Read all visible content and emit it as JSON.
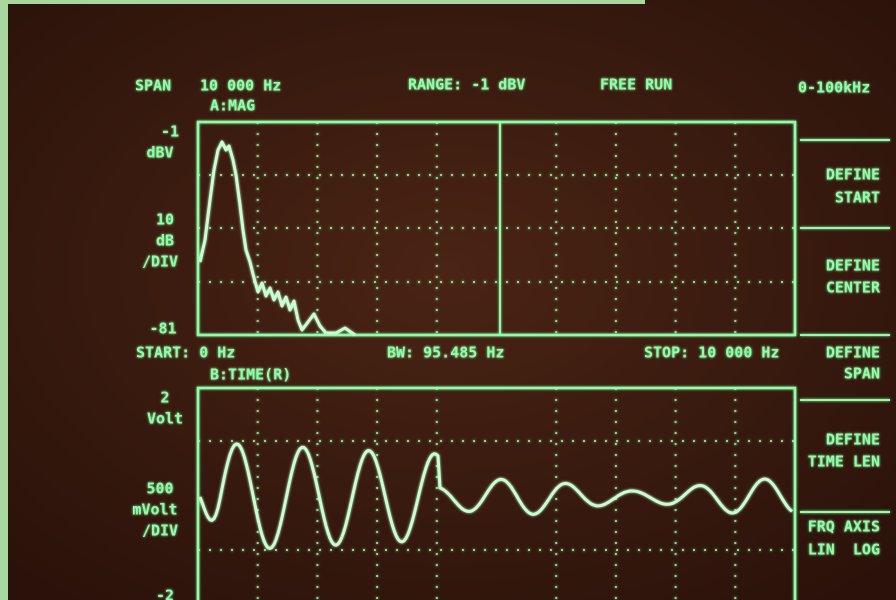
{
  "header": {
    "span_label": "SPAN",
    "span_value": "10 000 Hz",
    "range": "RANGE: -1 dBV",
    "trigger": "FREE RUN",
    "band": "0-100kHz"
  },
  "trace_a": {
    "title": "A:MAG",
    "top": "-1",
    "top_unit": "dBV",
    "scale": "10",
    "scale_unit": "dB",
    "scale_per": "/DIV",
    "bottom": "-81"
  },
  "status": {
    "start": "START: 0 Hz",
    "bw": "BW: 95.485 Hz",
    "stop": "STOP: 10 000 Hz"
  },
  "trace_b": {
    "title": "B:TIME(R)",
    "top": "2",
    "top_unit": "Volt",
    "scale": "500",
    "scale_unit": "mVolt",
    "scale_per": "/DIV",
    "bottom": "-2"
  },
  "softkeys": [
    {
      "lines": [
        "DEFINE",
        "START"
      ]
    },
    {
      "lines": [
        "DEFINE",
        "CENTER"
      ]
    },
    {
      "lines": [
        "DEFINE",
        "SPAN"
      ]
    },
    {
      "lines": [
        "DEFINE",
        "TIME LEN"
      ]
    },
    {
      "lines": [
        "FRQ AXIS",
        "LIN  LOG"
      ]
    }
  ]
}
